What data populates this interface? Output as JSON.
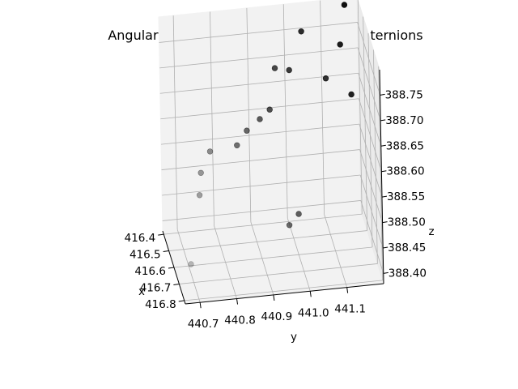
{
  "chart_data": {
    "type": "scatter",
    "title": "Angular Momentum when using the Quaternions",
    "xlabel": "x",
    "ylabel": "y",
    "zlabel": "z",
    "x_ticks": [
      "416.4",
      "416.5",
      "416.6",
      "416.7",
      "416.8"
    ],
    "y_ticks": [
      "440.7",
      "440.8",
      "440.9",
      "441.0",
      "441.1"
    ],
    "z_ticks": [
      "388.40",
      "388.45",
      "388.50",
      "388.55",
      "388.60",
      "388.65",
      "388.70",
      "388.75"
    ],
    "grid": true,
    "point_color": "#000000",
    "pane_color": "#f2f2f2",
    "points": [
      {
        "x": 416.8,
        "y": 440.68,
        "z": 388.45
      },
      {
        "x": 416.7,
        "y": 440.72,
        "z": 388.55
      },
      {
        "x": 416.66,
        "y": 440.73,
        "z": 388.58
      },
      {
        "x": 416.63,
        "y": 440.76,
        "z": 388.61
      },
      {
        "x": 416.58,
        "y": 440.84,
        "z": 388.6
      },
      {
        "x": 416.56,
        "y": 440.87,
        "z": 388.62
      },
      {
        "x": 416.53,
        "y": 440.91,
        "z": 388.63
      },
      {
        "x": 416.51,
        "y": 440.94,
        "z": 388.64
      },
      {
        "x": 416.72,
        "y": 440.96,
        "z": 388.48
      },
      {
        "x": 416.69,
        "y": 440.99,
        "z": 388.49
      },
      {
        "x": 416.48,
        "y": 440.96,
        "z": 388.71
      },
      {
        "x": 416.47,
        "y": 441.0,
        "z": 388.7
      },
      {
        "x": 416.43,
        "y": 441.04,
        "z": 388.76
      },
      {
        "x": 416.54,
        "y": 441.09,
        "z": 388.7
      },
      {
        "x": 416.47,
        "y": 441.14,
        "z": 388.74
      },
      {
        "x": 416.53,
        "y": 441.16,
        "z": 388.66
      },
      {
        "x": 416.42,
        "y": 441.16,
        "z": 388.8
      }
    ]
  }
}
